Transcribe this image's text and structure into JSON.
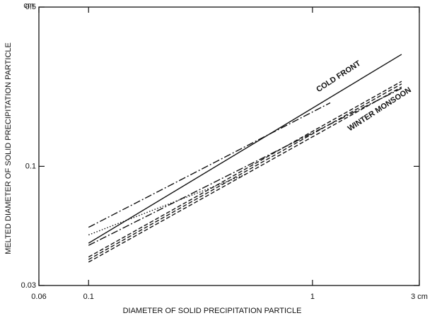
{
  "chart_data": {
    "type": "line",
    "x_label": "DIAMETER OF SOLID PRECIPITATION PARTICLE",
    "y_label": "MELTED DIAMETER OF SOLID PRECIPITATION PARTICLE",
    "y_unit": "cm",
    "log_x": true,
    "log_y": true,
    "xlim": [
      0.06,
      3
    ],
    "ylim": [
      0.03,
      0.5
    ],
    "xticks": [
      0.06,
      0.1,
      1,
      {
        "value": 3,
        "label": "3 cm"
      }
    ],
    "yticks": [
      0.03,
      0.1,
      0.5
    ],
    "annotations": [
      {
        "text": "COLD FRONT",
        "x": 1.05,
        "y": 0.215
      },
      {
        "text": "WINTER MONSOON",
        "x": 1.45,
        "y": 0.145
      }
    ],
    "series": [
      {
        "color": "#111111",
        "dash": "solid",
        "x": [
          0.1,
          2.5
        ],
        "values": [
          0.046,
          0.31
        ]
      },
      {
        "color": "#111111",
        "dash": "dashdot",
        "x": [
          0.1,
          1.2
        ],
        "values": [
          0.054,
          0.19
        ]
      },
      {
        "color": "#111111",
        "dash": "dotted",
        "x": [
          0.1,
          0.5
        ],
        "values": [
          0.05,
          0.092
        ]
      },
      {
        "color": "#111111",
        "dash": "dashdot",
        "x": [
          0.1,
          2.5
        ],
        "values": [
          0.045,
          0.22
        ]
      },
      {
        "color": "#111111",
        "dash": "dashed",
        "x": [
          0.1,
          2.5
        ],
        "values": [
          0.04,
          0.236
        ]
      },
      {
        "color": "#111111",
        "dash": "dashed",
        "x": [
          0.1,
          2.5
        ],
        "values": [
          0.039,
          0.23
        ]
      },
      {
        "color": "#111111",
        "dash": "dashed",
        "x": [
          0.1,
          2.5
        ],
        "values": [
          0.038,
          0.223
        ]
      }
    ]
  }
}
